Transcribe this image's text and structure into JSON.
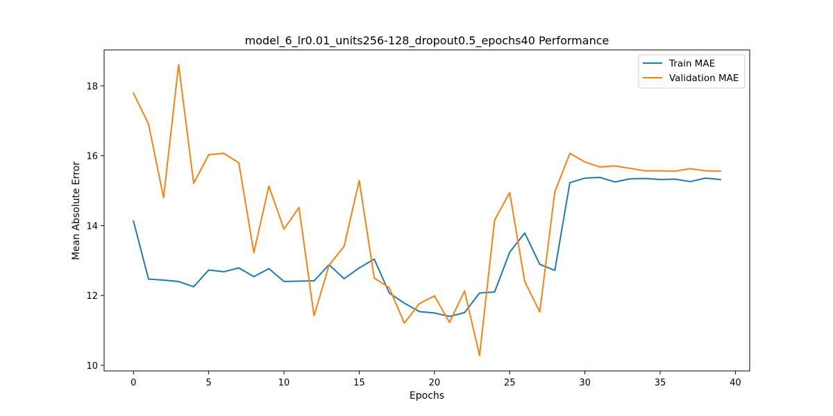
{
  "chart_data": {
    "type": "line",
    "title": "model_6_lr0.01_units256-128_dropout0.5_epochs40 Performance",
    "xlabel": "Epochs",
    "ylabel": "Mean Absolute Error",
    "xlim": [
      -1.95,
      40.95
    ],
    "ylim": [
      9.84,
      19.03
    ],
    "xticks": [
      0,
      5,
      10,
      15,
      20,
      25,
      30,
      35,
      40
    ],
    "yticks": [
      10,
      12,
      14,
      16,
      18
    ],
    "grid": false,
    "legend_position": "top-right",
    "x": [
      0,
      1,
      2,
      3,
      4,
      5,
      6,
      7,
      8,
      9,
      10,
      11,
      12,
      13,
      14,
      15,
      16,
      17,
      18,
      19,
      20,
      21,
      22,
      23,
      24,
      25,
      26,
      27,
      28,
      29,
      30,
      31,
      32,
      33,
      34,
      35,
      36,
      37,
      38,
      39
    ],
    "series": [
      {
        "name": "Train MAE",
        "color": "#1f77b4",
        "values": [
          14.13,
          12.47,
          12.44,
          12.4,
          12.25,
          12.73,
          12.68,
          12.79,
          12.54,
          12.77,
          12.4,
          12.41,
          12.42,
          12.88,
          12.48,
          12.79,
          13.04,
          12.07,
          11.78,
          11.54,
          11.5,
          11.4,
          11.51,
          12.07,
          12.1,
          13.24,
          13.79,
          12.89,
          12.72,
          15.23,
          15.36,
          15.38,
          15.25,
          15.34,
          15.35,
          15.32,
          15.33,
          15.26,
          15.36,
          15.32
        ]
      },
      {
        "name": "Validation MAE",
        "color": "#ff7f0e",
        "values": [
          17.79,
          16.91,
          14.8,
          18.61,
          15.21,
          16.03,
          16.07,
          15.8,
          13.23,
          15.13,
          13.9,
          14.52,
          11.42,
          12.87,
          13.41,
          15.29,
          12.5,
          12.22,
          11.21,
          11.77,
          11.99,
          11.23,
          12.13,
          10.28,
          14.16,
          14.95,
          12.4,
          11.53,
          14.97,
          16.07,
          15.82,
          15.68,
          15.71,
          15.64,
          15.57,
          15.57,
          15.56,
          15.63,
          15.57,
          15.56
        ]
      }
    ]
  }
}
